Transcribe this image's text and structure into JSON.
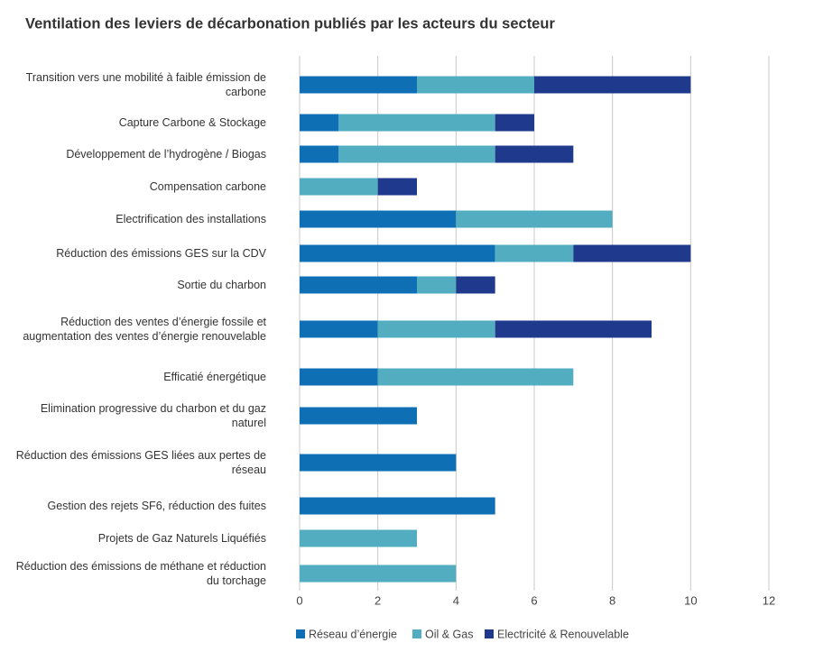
{
  "chart_data": {
    "type": "hbar-stacked",
    "title": "Ventilation des leviers de décarbonation publiés par les acteurs du secteur",
    "categories": [
      "Transition vers une mobilité à faible émission de carbone",
      "Capture Carbone & Stockage",
      "Développement de l’hydrogène / Biogas",
      "Compensation carbone",
      "Electrification des installations",
      "Réduction des émissions GES sur la CDV",
      "Sortie du charbon",
      "Réduction des ventes d’énergie fossile et augmentation des ventes d’énergie renouvelable",
      "Efficatié énergétique",
      "Elimination progressive du charbon et du gaz naturel",
      "Réduction des émissions GES liées aux pertes de réseau",
      "Gestion des rejets SF6, réduction des fuites",
      "Projets de Gaz Naturels Liquéfiés",
      "Réduction des émissions de méthane et réduction du torchage"
    ],
    "series": [
      {
        "name": "Réseau d’énergie",
        "color": "#0f6fb5",
        "values": [
          3,
          1,
          1,
          0,
          4,
          5,
          3,
          2,
          2,
          3,
          4,
          5,
          0,
          0
        ]
      },
      {
        "name": "Oil & Gas",
        "color": "#52adc0",
        "values": [
          3,
          4,
          4,
          2,
          4,
          2,
          1,
          3,
          5,
          0,
          0,
          0,
          3,
          4
        ]
      },
      {
        "name": "Electricité & Renouvelable",
        "color": "#1f3a8c",
        "values": [
          4,
          1,
          2,
          1,
          0,
          3,
          1,
          4,
          0,
          0,
          0,
          0,
          0,
          0
        ]
      }
    ],
    "xlim": [
      0,
      12
    ],
    "xticks": [
      0,
      2,
      4,
      6,
      8,
      10,
      12
    ],
    "grid": true,
    "legend": "bottom"
  }
}
